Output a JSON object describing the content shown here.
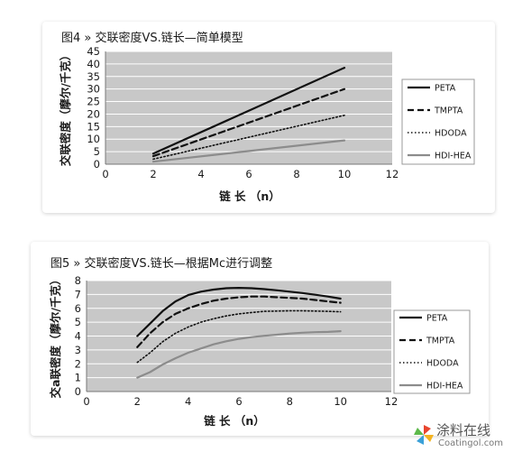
{
  "charts": [
    {
      "title": "图4 » 交联密度VS.链长—简单模型",
      "chart_data": {
        "type": "line",
        "xlabel": "链 长 （n）",
        "ylabel": "交联密度（摩尔/千克）",
        "xlim": [
          0,
          12
        ],
        "ylim": [
          0,
          45
        ],
        "xticks": [
          0,
          2,
          4,
          6,
          8,
          10,
          12
        ],
        "yticks": [
          0,
          5,
          10,
          15,
          20,
          25,
          30,
          35,
          40,
          45
        ],
        "grid": true,
        "legend_position": "right",
        "series": [
          {
            "name": "PETA",
            "style": "solid",
            "color": "#111111",
            "points": [
              [
                2,
                4.2
              ],
              [
                10,
                38.5
              ]
            ]
          },
          {
            "name": "TMPTA",
            "style": "dashed",
            "color": "#111111",
            "points": [
              [
                2,
                3.2
              ],
              [
                10,
                30
              ]
            ]
          },
          {
            "name": "HDODA",
            "style": "dotted",
            "color": "#111111",
            "points": [
              [
                2,
                2
              ],
              [
                10,
                19.5
              ]
            ]
          },
          {
            "name": "HDI-HEA",
            "style": "solid-gray",
            "color": "#8c8c8c",
            "points": [
              [
                2,
                1
              ],
              [
                10,
                9.5
              ]
            ]
          }
        ]
      }
    },
    {
      "title": "图5 » 交联密度VS.链长—根据Mc进行调整",
      "chart_data": {
        "type": "line",
        "xlabel": "链 长 （n）",
        "ylabel": "交a联密度（摩尔/千克）",
        "xlim": [
          0,
          12
        ],
        "ylim": [
          0,
          8
        ],
        "xticks": [
          0,
          2,
          4,
          6,
          8,
          10,
          12
        ],
        "yticks": [
          0,
          1,
          2,
          3,
          4,
          5,
          6,
          7,
          8
        ],
        "grid": true,
        "legend_position": "right",
        "series": [
          {
            "name": "PETA",
            "style": "solid",
            "color": "#111111",
            "points": [
              [
                2,
                4.0
              ],
              [
                2.5,
                4.9
              ],
              [
                3,
                5.8
              ],
              [
                3.5,
                6.5
              ],
              [
                4,
                6.95
              ],
              [
                4.5,
                7.2
              ],
              [
                5,
                7.35
              ],
              [
                5.5,
                7.45
              ],
              [
                6,
                7.47
              ],
              [
                6.5,
                7.45
              ],
              [
                7,
                7.38
              ],
              [
                7.5,
                7.3
              ],
              [
                8,
                7.2
              ],
              [
                8.5,
                7.1
              ],
              [
                9,
                6.98
              ],
              [
                9.5,
                6.85
              ],
              [
                10,
                6.7
              ]
            ]
          },
          {
            "name": "TMPTA",
            "style": "dashed",
            "color": "#111111",
            "points": [
              [
                2,
                3.2
              ],
              [
                2.5,
                4.2
              ],
              [
                3,
                5.0
              ],
              [
                3.5,
                5.6
              ],
              [
                4,
                6.0
              ],
              [
                4.5,
                6.3
              ],
              [
                5,
                6.55
              ],
              [
                5.5,
                6.7
              ],
              [
                6,
                6.8
              ],
              [
                6.5,
                6.85
              ],
              [
                7,
                6.85
              ],
              [
                7.5,
                6.8
              ],
              [
                8,
                6.75
              ],
              [
                8.5,
                6.7
              ],
              [
                9,
                6.6
              ],
              [
                9.5,
                6.5
              ],
              [
                10,
                6.4
              ]
            ]
          },
          {
            "name": "HDODA",
            "style": "dotted",
            "color": "#111111",
            "points": [
              [
                2,
                2.1
              ],
              [
                2.5,
                2.8
              ],
              [
                3,
                3.6
              ],
              [
                3.5,
                4.2
              ],
              [
                4,
                4.65
              ],
              [
                4.5,
                5.0
              ],
              [
                5,
                5.25
              ],
              [
                5.5,
                5.45
              ],
              [
                6,
                5.6
              ],
              [
                6.5,
                5.7
              ],
              [
                7,
                5.78
              ],
              [
                7.5,
                5.8
              ],
              [
                8,
                5.82
              ],
              [
                8.5,
                5.82
              ],
              [
                9,
                5.8
              ],
              [
                9.5,
                5.78
              ],
              [
                10,
                5.75
              ]
            ]
          },
          {
            "name": "HDI-HEA",
            "style": "solid-gray",
            "color": "#8c8c8c",
            "points": [
              [
                2,
                1.0
              ],
              [
                2.5,
                1.4
              ],
              [
                3,
                1.95
              ],
              [
                3.5,
                2.4
              ],
              [
                4,
                2.8
              ],
              [
                4.5,
                3.1
              ],
              [
                5,
                3.4
              ],
              [
                5.5,
                3.62
              ],
              [
                6,
                3.8
              ],
              [
                6.5,
                3.92
              ],
              [
                7,
                4.02
              ],
              [
                7.5,
                4.1
              ],
              [
                8,
                4.18
              ],
              [
                8.5,
                4.24
              ],
              [
                9,
                4.28
              ],
              [
                9.5,
                4.3
              ],
              [
                10,
                4.35
              ]
            ]
          }
        ]
      }
    }
  ],
  "watermark": {
    "text": "涂料在线",
    "subtext": "Coatingol.com"
  },
  "colors": {
    "plot_bg": "#c8c8c8",
    "grid": "#ffffff",
    "legend_border": "#999999"
  }
}
